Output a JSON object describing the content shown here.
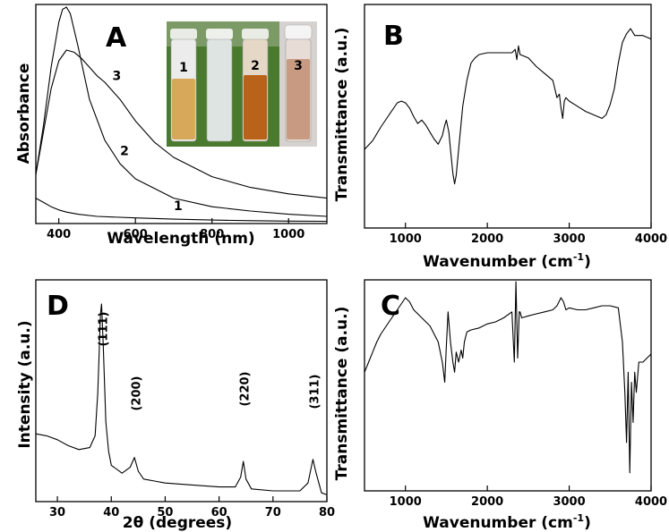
{
  "chart_data": [
    {
      "panel": "A",
      "type": "line",
      "xlabel": "Wavelength (nm)",
      "ylabel": "Absorbance",
      "xlim": [
        340,
        1100
      ],
      "xticks": [
        400,
        600,
        800,
        1000
      ],
      "yticks": false,
      "series": [
        {
          "name": "1",
          "x": [
            340,
            360,
            380,
            400,
            420,
            450,
            500,
            600,
            700,
            800,
            900,
            1000,
            1100
          ],
          "y": [
            0.11,
            0.09,
            0.07,
            0.055,
            0.045,
            0.035,
            0.025,
            0.018,
            0.012,
            0.008,
            0.005,
            0.003,
            0.002
          ]
        },
        {
          "name": "2",
          "x": [
            340,
            360,
            380,
            400,
            410,
            420,
            430,
            450,
            480,
            520,
            560,
            600,
            700,
            800,
            900,
            1000,
            1100
          ],
          "y": [
            0.22,
            0.45,
            0.72,
            0.93,
            0.99,
            1.0,
            0.97,
            0.82,
            0.57,
            0.38,
            0.27,
            0.2,
            0.11,
            0.07,
            0.05,
            0.035,
            0.025
          ]
        },
        {
          "name": "3",
          "x": [
            340,
            360,
            380,
            400,
            420,
            440,
            460,
            480,
            500,
            520,
            540,
            560,
            580,
            600,
            650,
            700,
            800,
            900,
            1000,
            1100
          ],
          "y": [
            0.22,
            0.42,
            0.62,
            0.75,
            0.8,
            0.79,
            0.76,
            0.72,
            0.68,
            0.65,
            0.61,
            0.57,
            0.52,
            0.47,
            0.37,
            0.3,
            0.21,
            0.16,
            0.13,
            0.11
          ]
        }
      ],
      "annotations": [
        "1",
        "2",
        "3"
      ],
      "inset_photo_labels": [
        "1",
        "2",
        "3"
      ]
    },
    {
      "panel": "B",
      "type": "line",
      "xlabel": "Wavenumber (cm-1)",
      "ylabel": "Transmittance (a.u.)",
      "xlim": [
        500,
        4000
      ],
      "xticks": [
        1000,
        2000,
        3000,
        4000
      ],
      "yticks": false,
      "series": [
        {
          "x": [
            500,
            600,
            700,
            800,
            900,
            950,
            1000,
            1050,
            1100,
            1150,
            1200,
            1250,
            1300,
            1350,
            1400,
            1450,
            1480,
            1500,
            1530,
            1550,
            1580,
            1600,
            1620,
            1650,
            1700,
            1750,
            1800,
            1850,
            1900,
            2000,
            2100,
            2200,
            2300,
            2340,
            2360,
            2380,
            2400,
            2500,
            2600,
            2700,
            2800,
            2850,
            2880,
            2900,
            2920,
            2940,
            2960,
            3000,
            3100,
            3200,
            3300,
            3400,
            3450,
            3500,
            3550,
            3600,
            3650,
            3700,
            3750,
            3800,
            3900,
            4000
          ],
          "y": [
            0.3,
            0.35,
            0.43,
            0.5,
            0.57,
            0.58,
            0.57,
            0.54,
            0.49,
            0.45,
            0.47,
            0.44,
            0.4,
            0.36,
            0.33,
            0.38,
            0.44,
            0.47,
            0.4,
            0.3,
            0.16,
            0.1,
            0.15,
            0.3,
            0.55,
            0.7,
            0.8,
            0.83,
            0.85,
            0.86,
            0.86,
            0.86,
            0.86,
            0.88,
            0.82,
            0.9,
            0.85,
            0.83,
            0.78,
            0.74,
            0.7,
            0.6,
            0.62,
            0.54,
            0.48,
            0.58,
            0.6,
            0.58,
            0.55,
            0.52,
            0.5,
            0.48,
            0.5,
            0.56,
            0.65,
            0.8,
            0.92,
            0.97,
            1.0,
            0.96,
            0.96,
            0.94
          ]
        }
      ]
    },
    {
      "panel": "D",
      "type": "line",
      "xlabel": "2θ (degrees)",
      "ylabel": "Intensity (a.u.)",
      "xlim": [
        26,
        80
      ],
      "xticks": [
        30,
        40,
        50,
        60,
        70,
        80
      ],
      "yticks": false,
      "series": [
        {
          "x": [
            26,
            28,
            30,
            32,
            34,
            36,
            37,
            37.5,
            38,
            38.2,
            38.5,
            39,
            39.5,
            40,
            42,
            43.5,
            44.3,
            45,
            46,
            48,
            50,
            55,
            60,
            63,
            64,
            64.5,
            65,
            66,
            70,
            75,
            76.5,
            77.4,
            78,
            79,
            80
          ],
          "y": [
            0.34,
            0.33,
            0.31,
            0.28,
            0.26,
            0.27,
            0.33,
            0.55,
            0.95,
            1.0,
            0.8,
            0.4,
            0.25,
            0.18,
            0.14,
            0.17,
            0.22,
            0.15,
            0.11,
            0.1,
            0.09,
            0.08,
            0.07,
            0.07,
            0.12,
            0.2,
            0.11,
            0.06,
            0.05,
            0.05,
            0.09,
            0.21,
            0.14,
            0.04,
            0.03
          ]
        }
      ],
      "peak_labels": [
        {
          "label": "(111)",
          "x": 38.2
        },
        {
          "label": "(200)",
          "x": 44.4
        },
        {
          "label": "(220)",
          "x": 64.5
        },
        {
          "label": "(311)",
          "x": 77.4
        }
      ]
    },
    {
      "panel": "C",
      "type": "line",
      "xlabel": "Wavenumber (cm-1)",
      "ylabel": "Transmittance (a.u.)",
      "xlim": [
        500,
        4000
      ],
      "xticks": [
        1000,
        2000,
        3000,
        4000
      ],
      "yticks": false,
      "series": [
        {
          "x": [
            500,
            550,
            600,
            650,
            700,
            800,
            900,
            1000,
            1050,
            1100,
            1200,
            1300,
            1400,
            1450,
            1480,
            1500,
            1520,
            1550,
            1580,
            1600,
            1620,
            1650,
            1680,
            1700,
            1720,
            1750,
            1800,
            1900,
            2000,
            2100,
            2200,
            2300,
            2330,
            2350,
            2370,
            2390,
            2400,
            2420,
            2500,
            2600,
            2700,
            2800,
            2850,
            2900,
            2930,
            2960,
            3000,
            3100,
            3200,
            3300,
            3400,
            3500,
            3600,
            3650,
            3680,
            3700,
            3720,
            3740,
            3760,
            3780,
            3800,
            3820,
            3850,
            3900,
            3950,
            4000
          ],
          "y": [
            0.55,
            0.6,
            0.65,
            0.7,
            0.74,
            0.8,
            0.86,
            0.92,
            0.9,
            0.86,
            0.82,
            0.78,
            0.7,
            0.6,
            0.5,
            0.68,
            0.85,
            0.7,
            0.6,
            0.55,
            0.65,
            0.6,
            0.66,
            0.62,
            0.7,
            0.75,
            0.76,
            0.77,
            0.79,
            0.8,
            0.82,
            0.85,
            0.6,
            1.0,
            0.62,
            0.85,
            0.85,
            0.82,
            0.83,
            0.84,
            0.85,
            0.86,
            0.88,
            0.92,
            0.9,
            0.86,
            0.87,
            0.86,
            0.86,
            0.87,
            0.88,
            0.88,
            0.87,
            0.7,
            0.45,
            0.2,
            0.55,
            0.05,
            0.5,
            0.3,
            0.55,
            0.45,
            0.6,
            0.6,
            0.62,
            0.64
          ]
        }
      ]
    }
  ],
  "texts": {
    "xlabel_A": "Wavelength (nm)",
    "ylabel_A": "Absorbance",
    "xlabel_B_main": "Wavenumber (cm",
    "xlabel_B_sup": "-1",
    "xlabel_B_close": ")",
    "ylabel_B": "Transmittance (a.u.)",
    "xlabel_D": "2θ (degrees)",
    "ylabel_D": "Intensity (a.u.)",
    "xlabel_C_main": "Wavenumber (cm",
    "xlabel_C_sup": "-1",
    "xlabel_C_close": ")",
    "ylabel_C": "Transmittance (a.u.)",
    "letter_A": "A",
    "letter_B": "B",
    "letter_C": "C",
    "letter_D": "D"
  },
  "colors": {
    "line": "#000000",
    "vial_1_liquid": "#d8a85a",
    "vial_2_liquid": "#b8621a",
    "vial_3_liquid": "#c89a82",
    "vial_clear": "#dde4e2",
    "photo_bg": "#4a7a2e"
  }
}
